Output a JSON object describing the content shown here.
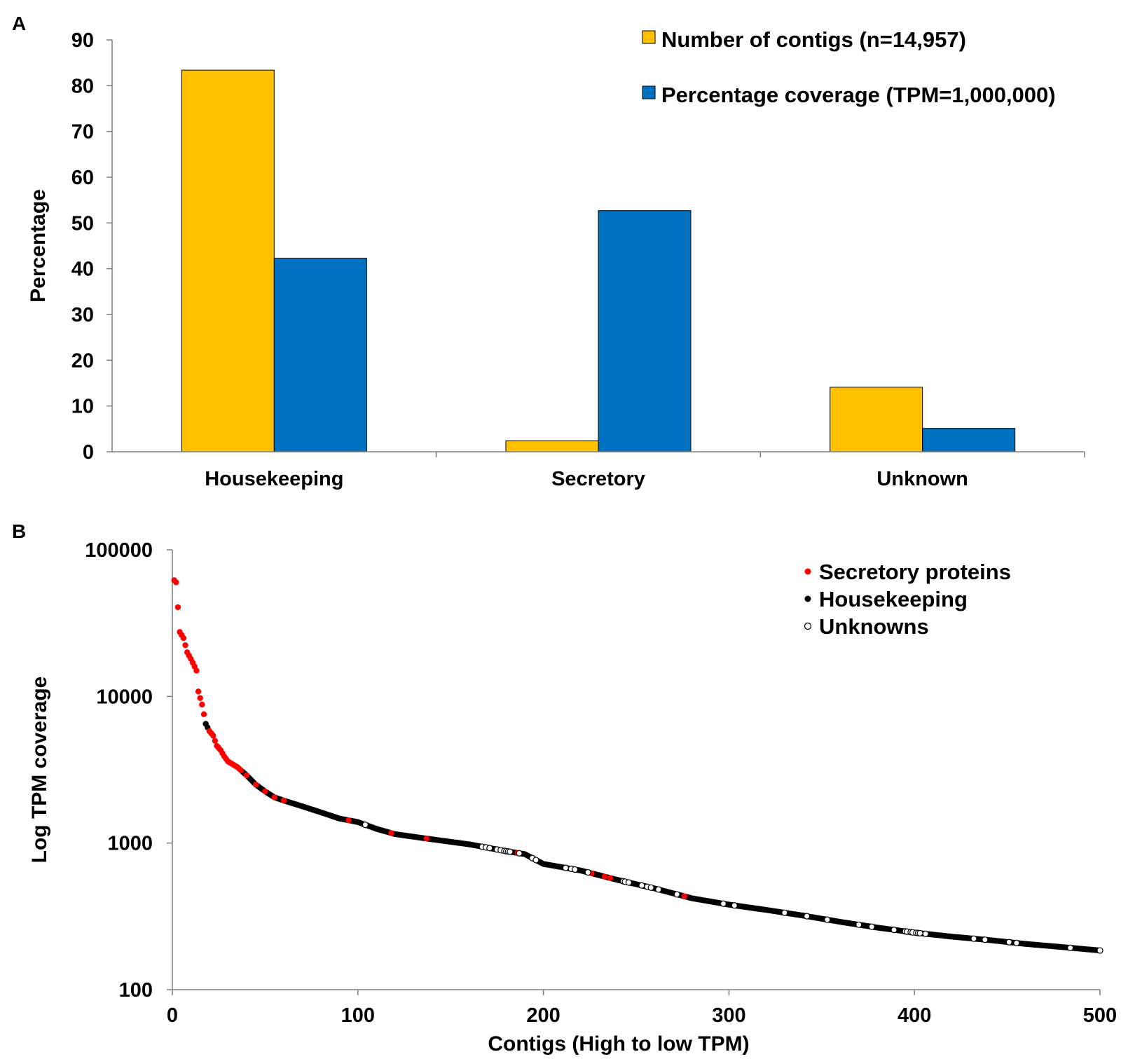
{
  "chart_data": [
    {
      "panel": "A",
      "type": "bar",
      "categories": [
        "Housekeeping",
        "Secretory",
        "Unknown"
      ],
      "series": [
        {
          "name": "Number of contigs (n=14,957)",
          "color": "#FFC000",
          "values": [
            83.4,
            2.4,
            14.1
          ]
        },
        {
          "name": "Percentage coverage (TPM=1,000,000)",
          "color": "#0070C0",
          "values": [
            42.3,
            52.7,
            5.1
          ]
        }
      ],
      "ylabel": "Percentage",
      "ylim": [
        0,
        90
      ],
      "yticks": [
        "0",
        "10",
        "20",
        "30",
        "40",
        "50",
        "60",
        "70",
        "80",
        "90"
      ],
      "legend_position": "top-right"
    },
    {
      "panel": "B",
      "type": "scatter",
      "yscale": "log",
      "xlabel": "Contigs (High to low TPM)",
      "ylabel": "Log TPM coverage",
      "xlim": [
        0,
        500
      ],
      "ylim": [
        100,
        100000
      ],
      "xticks": [
        "0",
        "100",
        "200",
        "300",
        "400",
        "500"
      ],
      "yticks": [
        "100",
        "1000",
        "10000",
        "100000"
      ],
      "legend_position": "top-right",
      "categories": [
        {
          "name": "Secretory proteins",
          "color": "#ff0000"
        },
        {
          "name": "Housekeeping",
          "color": "#000000"
        },
        {
          "name": "Unknowns",
          "color": "#ffffff"
        }
      ],
      "curve_anchors": [
        [
          1,
          62000
        ],
        [
          2,
          60000
        ],
        [
          4,
          27500
        ],
        [
          6,
          25000
        ],
        [
          8,
          20000
        ],
        [
          10,
          18000
        ],
        [
          12,
          16000
        ],
        [
          13,
          15000
        ],
        [
          14,
          10800
        ],
        [
          16,
          8800
        ],
        [
          18,
          6500
        ],
        [
          20,
          5800
        ],
        [
          22,
          5400
        ],
        [
          24,
          4600
        ],
        [
          26,
          4300
        ],
        [
          28,
          3900
        ],
        [
          30,
          3600
        ],
        [
          35,
          3300
        ],
        [
          40,
          2900
        ],
        [
          45,
          2500
        ],
        [
          50,
          2250
        ],
        [
          55,
          2050
        ],
        [
          60,
          1950
        ],
        [
          70,
          1780
        ],
        [
          80,
          1620
        ],
        [
          90,
          1470
        ],
        [
          100,
          1390
        ],
        [
          110,
          1250
        ],
        [
          120,
          1150
        ],
        [
          140,
          1060
        ],
        [
          160,
          980
        ],
        [
          180,
          880
        ],
        [
          190,
          840
        ],
        [
          200,
          720
        ],
        [
          220,
          650
        ],
        [
          240,
          560
        ],
        [
          260,
          490
        ],
        [
          280,
          420
        ],
        [
          300,
          380
        ],
        [
          320,
          350
        ],
        [
          340,
          320
        ],
        [
          360,
          290
        ],
        [
          380,
          265
        ],
        [
          400,
          245
        ],
        [
          420,
          230
        ],
        [
          440,
          218
        ],
        [
          460,
          205
        ],
        [
          480,
          195
        ],
        [
          500,
          185
        ]
      ],
      "secretory_ranks": [
        1,
        2,
        3,
        4,
        5,
        6,
        7,
        8,
        9,
        10,
        11,
        12,
        13,
        14,
        15,
        16,
        17,
        20,
        21,
        22,
        23,
        24,
        25,
        26,
        27,
        28,
        29,
        30,
        31,
        32,
        33,
        34,
        35,
        36,
        37,
        40,
        45,
        50,
        55,
        60,
        95,
        118,
        137,
        186,
        226,
        233,
        236,
        257,
        276
      ],
      "unknown_ranks": [
        104,
        167,
        169,
        171,
        175,
        177,
        179,
        180,
        181,
        182,
        187,
        194,
        196,
        212,
        215,
        217,
        224,
        243,
        244,
        246,
        253,
        256,
        258,
        262,
        272,
        297,
        303,
        330,
        342,
        353,
        370,
        377,
        389,
        395,
        396,
        398,
        399,
        401,
        402,
        403,
        406,
        432,
        438,
        451,
        455,
        484,
        500
      ]
    }
  ]
}
